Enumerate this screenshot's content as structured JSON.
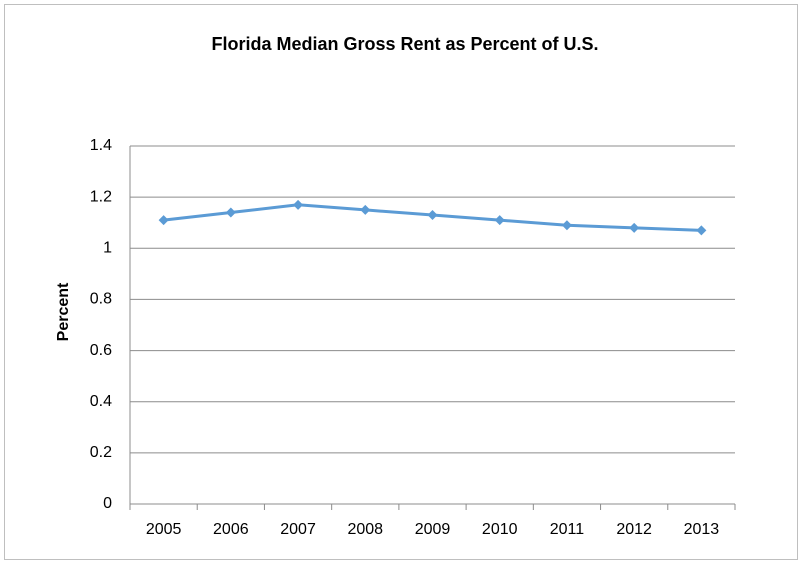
{
  "chart_data": {
    "type": "line",
    "title": "Florida Median Gross Rent as Percent of U.S.",
    "y_label": "Percent",
    "categories": [
      "2005",
      "2006",
      "2007",
      "2008",
      "2009",
      "2010",
      "2011",
      "2012",
      "2013"
    ],
    "series": [
      {
        "name": "Florida",
        "color": "#5b9bd5",
        "values": [
          1.11,
          1.14,
          1.17,
          1.15,
          1.13,
          1.11,
          1.09,
          1.08,
          1.07
        ]
      }
    ],
    "ylim": [
      0,
      1.4
    ],
    "yticks": [
      0,
      0.2,
      0.4,
      0.6,
      0.8,
      1,
      1.2,
      1.4
    ],
    "grid": true,
    "legend": false
  }
}
